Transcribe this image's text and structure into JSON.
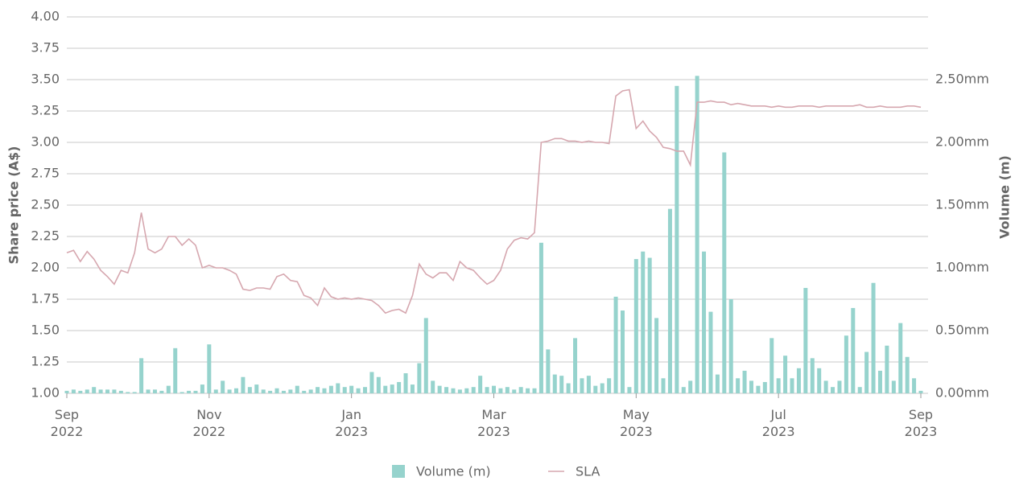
{
  "chart_data": {
    "type": "bar",
    "categories": [
      "Sep 2022",
      null,
      null,
      null,
      null,
      null,
      null,
      null,
      null,
      null,
      null,
      null,
      null,
      null,
      null,
      null,
      null,
      null,
      null,
      null,
      null,
      "Nov 2022",
      null,
      null,
      null,
      null,
      null,
      null,
      null,
      null,
      null,
      null,
      null,
      null,
      null,
      null,
      null,
      null,
      null,
      null,
      null,
      null,
      "Jan 2023",
      null,
      null,
      null,
      null,
      null,
      null,
      null,
      null,
      null,
      null,
      null,
      null,
      null,
      null,
      null,
      null,
      null,
      null,
      null,
      null,
      "Mar 2023",
      null,
      null,
      null,
      null,
      null,
      null,
      null,
      null,
      null,
      null,
      null,
      null,
      null,
      null,
      null,
      null,
      null,
      null,
      null,
      null,
      "May 2023",
      null,
      null,
      null,
      null,
      null,
      null,
      null,
      null,
      null,
      null,
      null,
      null,
      null,
      null,
      null,
      null,
      null,
      null,
      null,
      null,
      "Jul 2023",
      null,
      null,
      null,
      null,
      null,
      null,
      null,
      null,
      null,
      null,
      null,
      null,
      null,
      null,
      null,
      null,
      null,
      null,
      null,
      null,
      "Sep 2023"
    ],
    "series": [
      {
        "name": "Volume (m)",
        "type": "bar",
        "axis": "y2",
        "color": "#96d3cd",
        "values": [
          0.02,
          0.03,
          0.02,
          0.03,
          0.05,
          0.03,
          0.03,
          0.03,
          0.02,
          0.01,
          0.01,
          0.28,
          0.03,
          0.03,
          0.02,
          0.06,
          0.36,
          0.01,
          0.02,
          0.02,
          0.07,
          0.39,
          0.03,
          0.1,
          0.03,
          0.04,
          0.13,
          0.05,
          0.07,
          0.03,
          0.02,
          0.04,
          0.02,
          0.03,
          0.06,
          0.02,
          0.03,
          0.05,
          0.04,
          0.06,
          0.08,
          0.05,
          0.06,
          0.04,
          0.05,
          0.17,
          0.13,
          0.06,
          0.07,
          0.09,
          0.16,
          0.07,
          0.24,
          0.6,
          0.1,
          0.06,
          0.05,
          0.04,
          0.03,
          0.04,
          0.05,
          0.14,
          0.05,
          0.06,
          0.04,
          0.05,
          0.03,
          0.05,
          0.04,
          0.04,
          1.2,
          0.35,
          0.15,
          0.14,
          0.08,
          0.44,
          0.12,
          0.14,
          0.06,
          0.08,
          0.12,
          0.77,
          0.66,
          0.05,
          1.07,
          1.13,
          1.08,
          0.6,
          0.12,
          1.47,
          2.45,
          0.05,
          0.1,
          2.53,
          1.13,
          0.65,
          0.15,
          1.92,
          0.75,
          0.12,
          0.18,
          0.1,
          0.06,
          0.09,
          0.44,
          0.12,
          0.3,
          0.12,
          0.2,
          0.84,
          0.28,
          0.2,
          0.1,
          0.05,
          0.1,
          0.46,
          0.68,
          0.05,
          0.33,
          0.88,
          0.18,
          0.38,
          0.1,
          0.56,
          0.29,
          0.12,
          0.02
        ]
      },
      {
        "name": "SLA",
        "type": "line",
        "color": "#d6a7af",
        "values": [
          2.12,
          2.14,
          2.05,
          2.13,
          2.07,
          1.98,
          1.93,
          1.87,
          1.98,
          1.96,
          2.12,
          2.44,
          2.15,
          2.12,
          2.15,
          2.25,
          2.25,
          2.18,
          2.23,
          2.18,
          2.0,
          2.02,
          2.0,
          2.0,
          1.98,
          1.95,
          1.83,
          1.82,
          1.84,
          1.84,
          1.83,
          1.93,
          1.95,
          1.9,
          1.89,
          1.78,
          1.76,
          1.7,
          1.84,
          1.77,
          1.75,
          1.76,
          1.75,
          1.76,
          1.75,
          1.74,
          1.7,
          1.64,
          1.66,
          1.67,
          1.64,
          1.78,
          2.03,
          1.95,
          1.92,
          1.96,
          1.96,
          1.9,
          2.05,
          2.0,
          1.98,
          1.92,
          1.87,
          1.9,
          1.98,
          2.15,
          2.22,
          2.24,
          2.23,
          2.28,
          3.0,
          3.01,
          3.03,
          3.03,
          3.01,
          3.01,
          3.0,
          3.01,
          3.0,
          3.0,
          2.99,
          3.37,
          3.41,
          3.42,
          3.11,
          3.17,
          3.09,
          3.04,
          2.96,
          2.95,
          2.93,
          2.93,
          2.82,
          3.32,
          3.32,
          3.33,
          3.32,
          3.32,
          3.3,
          3.31,
          3.3,
          3.29,
          3.29,
          3.29,
          3.28,
          3.29,
          3.28,
          3.28,
          3.29,
          3.29,
          3.29,
          3.28,
          3.29,
          3.29,
          3.29,
          3.29,
          3.29,
          3.3,
          3.28,
          3.28,
          3.29,
          3.28,
          3.28,
          3.28,
          3.29,
          3.29,
          3.28
        ]
      }
    ],
    "ylabel": "Share price (A$)",
    "y2label": "Volume (m)",
    "ylim": [
      1,
      4
    ],
    "yticks": [
      {
        "value": 1,
        "label": "1.00"
      },
      {
        "value": 1.25,
        "label": "1.25"
      },
      {
        "value": 1.5,
        "label": "1.50"
      },
      {
        "value": 1.75,
        "label": "1.75"
      },
      {
        "value": 2,
        "label": "2.00"
      },
      {
        "value": 2.25,
        "label": "2.25"
      },
      {
        "value": 2.5,
        "label": "2.50"
      },
      {
        "value": 2.75,
        "label": "2.75"
      },
      {
        "value": 3,
        "label": "3.00"
      },
      {
        "value": 3.25,
        "label": "3.25"
      },
      {
        "value": 3.5,
        "label": "3.50"
      },
      {
        "value": 3.75,
        "label": "3.75"
      },
      {
        "value": 4,
        "label": "4.00"
      }
    ],
    "y2lim": [
      0,
      3
    ],
    "y2ticks": [
      {
        "value": 0,
        "label": "0.00mm"
      },
      {
        "value": 0.5,
        "label": "0.50mm"
      },
      {
        "value": 1,
        "label": "1.00mm"
      },
      {
        "value": 1.5,
        "label": "1.50mm"
      },
      {
        "value": 2,
        "label": "2.00mm"
      },
      {
        "value": 2.5,
        "label": "2.50mm"
      }
    ],
    "grid": true,
    "legend": "bottom"
  }
}
